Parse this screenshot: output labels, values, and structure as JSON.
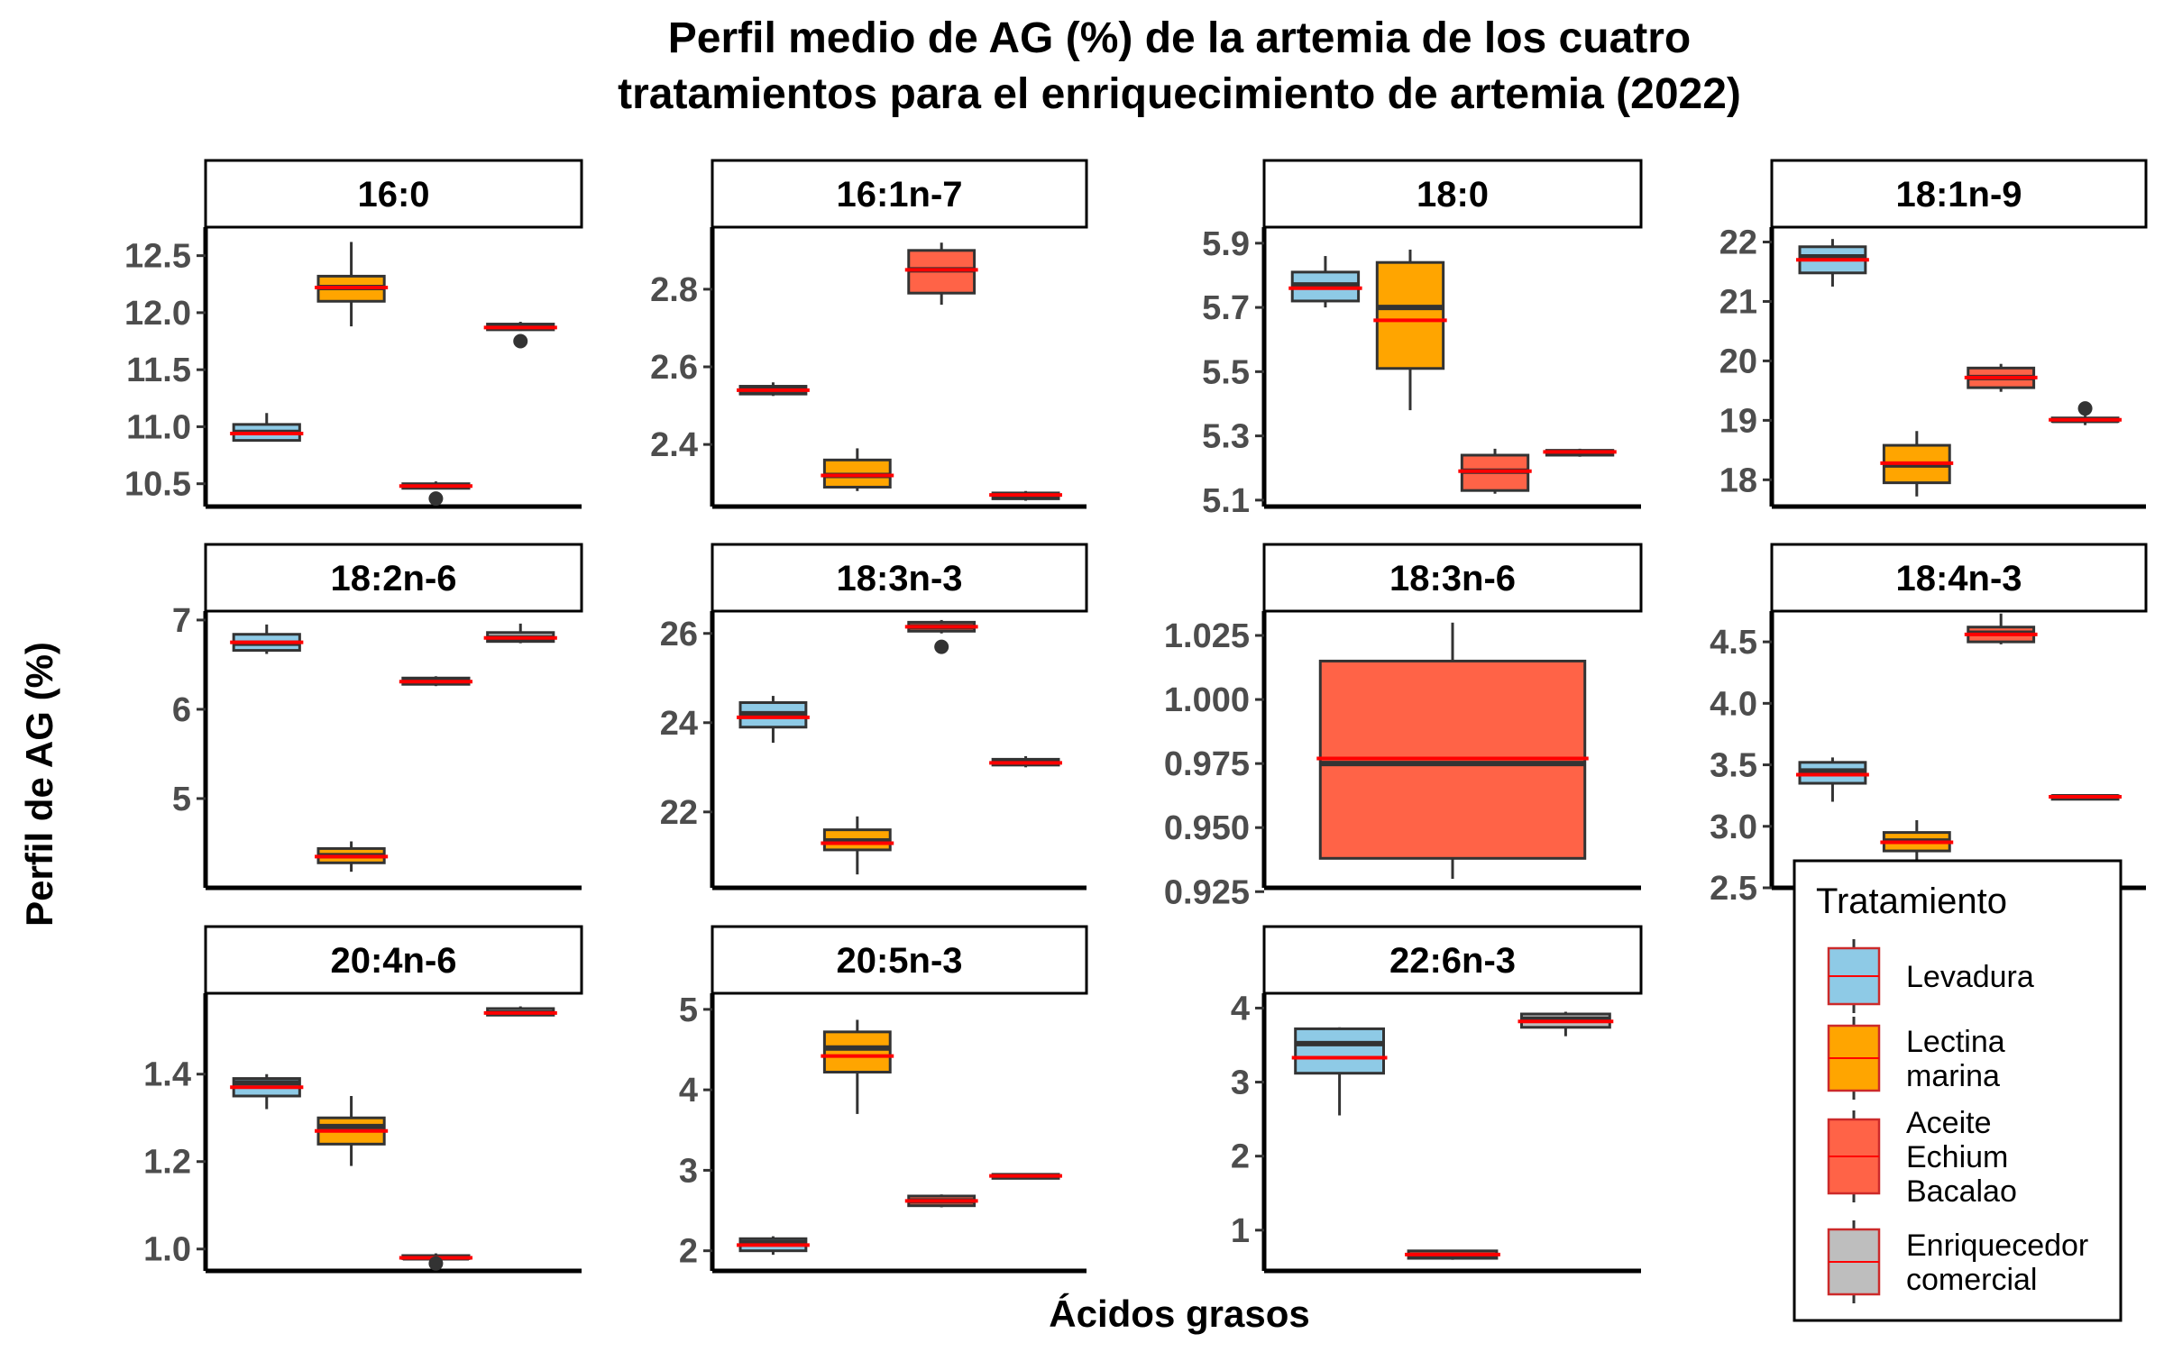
{
  "chart_data": {
    "type": "boxplot",
    "title": [
      "Perfil medio de AG (%) de la artemia de los cuatro",
      "tratamientos para el enriquecimiento de artemia (2022)"
    ],
    "xlabel": "Ácidos grasos",
    "ylabel": "Perfil de AG (%)",
    "legend": {
      "title": "Tratamiento",
      "position": "bottom-right",
      "items": [
        {
          "lines": [
            "Levadura"
          ],
          "color": "#8ecae6"
        },
        {
          "lines": [
            "Lectina",
            "marina"
          ],
          "color": "#ffa500"
        },
        {
          "lines": [
            "Aceite",
            "Echium",
            "Bacalao"
          ],
          "color": "#ff6347"
        },
        {
          "lines": [
            "Enriquecedor",
            "comercial"
          ],
          "color": "#bebebe"
        }
      ]
    },
    "mean_line_color": "#ff0000",
    "panels": [
      {
        "label": "16:0",
        "ylim": [
          10.3,
          12.75
        ],
        "ticks": [
          10.5,
          11.0,
          11.5,
          12.0,
          12.5
        ],
        "tick_labels": [
          "10.5",
          "11.0",
          "11.5",
          "12.0",
          "12.5"
        ],
        "boxes": [
          {
            "treatment": "Levadura",
            "min": 10.87,
            "q1": 10.88,
            "median": 10.95,
            "q3": 11.02,
            "max": 11.12,
            "mean": 10.94,
            "outliers": []
          },
          {
            "treatment": "Lectina marina",
            "min": 11.88,
            "q1": 12.1,
            "median": 12.22,
            "q3": 12.32,
            "max": 12.62,
            "mean": 12.22,
            "outliers": []
          },
          {
            "treatment": "Aceite Echium Bacalao",
            "min": 10.45,
            "q1": 10.46,
            "median": 10.48,
            "q3": 10.5,
            "max": 10.52,
            "mean": 10.48,
            "outliers": [
              10.37
            ]
          },
          {
            "treatment": "Enriquecedor comercial",
            "min": 11.84,
            "q1": 11.85,
            "median": 11.88,
            "q3": 11.9,
            "max": 11.92,
            "mean": 11.87,
            "outliers": [
              11.75
            ]
          }
        ]
      },
      {
        "label": "16:1n-7",
        "ylim": [
          2.24,
          2.96
        ],
        "ticks": [
          2.4,
          2.6,
          2.8
        ],
        "tick_labels": [
          "2.4",
          "2.6",
          "2.8"
        ],
        "boxes": [
          {
            "treatment": "Levadura",
            "min": 2.525,
            "q1": 2.53,
            "median": 2.54,
            "q3": 2.55,
            "max": 2.56,
            "mean": 2.54,
            "outliers": []
          },
          {
            "treatment": "Lectina marina",
            "min": 2.28,
            "q1": 2.29,
            "median": 2.32,
            "q3": 2.36,
            "max": 2.39,
            "mean": 2.32,
            "outliers": []
          },
          {
            "treatment": "Aceite Echium Bacalao",
            "min": 2.76,
            "q1": 2.79,
            "median": 2.85,
            "q3": 2.9,
            "max": 2.92,
            "mean": 2.85,
            "outliers": []
          },
          {
            "treatment": "Enriquecedor comercial",
            "min": 2.255,
            "q1": 2.26,
            "median": 2.27,
            "q3": 2.275,
            "max": 2.28,
            "mean": 2.27,
            "outliers": []
          }
        ]
      },
      {
        "label": "18:0",
        "ylim": [
          5.08,
          5.95
        ],
        "ticks": [
          5.1,
          5.3,
          5.5,
          5.7,
          5.9
        ],
        "tick_labels": [
          "5.1",
          "5.3",
          "5.5",
          "5.7",
          "5.9"
        ],
        "boxes": [
          {
            "treatment": "Levadura",
            "min": 5.7,
            "q1": 5.72,
            "median": 5.77,
            "q3": 5.81,
            "max": 5.86,
            "mean": 5.76,
            "outliers": []
          },
          {
            "treatment": "Lectina marina",
            "min": 5.38,
            "q1": 5.51,
            "median": 5.7,
            "q3": 5.84,
            "max": 5.88,
            "mean": 5.66,
            "outliers": []
          },
          {
            "treatment": "Aceite Echium Bacalao",
            "min": 5.12,
            "q1": 5.13,
            "median": 5.19,
            "q3": 5.24,
            "max": 5.26,
            "mean": 5.19,
            "outliers": []
          },
          {
            "treatment": "Enriquecedor comercial",
            "min": 5.235,
            "q1": 5.24,
            "median": 5.25,
            "q3": 5.255,
            "max": 5.26,
            "mean": 5.25,
            "outliers": []
          }
        ]
      },
      {
        "label": "18:1n-9",
        "ylim": [
          17.55,
          22.25
        ],
        "ticks": [
          18,
          19,
          20,
          21,
          22
        ],
        "tick_labels": [
          "18",
          "19",
          "20",
          "21",
          "22"
        ],
        "boxes": [
          {
            "treatment": "Levadura",
            "min": 21.25,
            "q1": 21.48,
            "median": 21.75,
            "q3": 21.92,
            "max": 22.05,
            "mean": 21.7,
            "outliers": []
          },
          {
            "treatment": "Lectina marina",
            "min": 17.72,
            "q1": 17.95,
            "median": 18.25,
            "q3": 18.58,
            "max": 18.82,
            "mean": 18.28,
            "outliers": []
          },
          {
            "treatment": "Aceite Echium Bacalao",
            "min": 19.48,
            "q1": 19.55,
            "median": 19.72,
            "q3": 19.88,
            "max": 19.95,
            "mean": 19.72,
            "outliers": []
          },
          {
            "treatment": "Enriquecedor comercial",
            "min": 18.92,
            "q1": 18.98,
            "median": 19.0,
            "q3": 19.04,
            "max": 19.08,
            "mean": 19.01,
            "outliers": [
              19.2
            ]
          }
        ]
      },
      {
        "label": "18:2n-6",
        "ylim": [
          4.0,
          7.1
        ],
        "ticks": [
          5,
          6,
          7
        ],
        "tick_labels": [
          "5",
          "6",
          "7"
        ],
        "boxes": [
          {
            "treatment": "Levadura",
            "min": 6.62,
            "q1": 6.66,
            "median": 6.74,
            "q3": 6.84,
            "max": 6.95,
            "mean": 6.75,
            "outliers": []
          },
          {
            "treatment": "Lectina marina",
            "min": 4.18,
            "q1": 4.28,
            "median": 4.36,
            "q3": 4.44,
            "max": 4.52,
            "mean": 4.35,
            "outliers": []
          },
          {
            "treatment": "Aceite Echium Bacalao",
            "min": 6.26,
            "q1": 6.28,
            "median": 6.32,
            "q3": 6.35,
            "max": 6.37,
            "mean": 6.31,
            "outliers": []
          },
          {
            "treatment": "Enriquecedor comercial",
            "min": 6.74,
            "q1": 6.76,
            "median": 6.8,
            "q3": 6.86,
            "max": 6.96,
            "mean": 6.8,
            "outliers": []
          }
        ]
      },
      {
        "label": "18:3n-3",
        "ylim": [
          20.3,
          26.5
        ],
        "ticks": [
          22,
          24,
          26
        ],
        "tick_labels": [
          "22",
          "24",
          "26"
        ],
        "boxes": [
          {
            "treatment": "Levadura",
            "min": 23.55,
            "q1": 23.9,
            "median": 24.2,
            "q3": 24.45,
            "max": 24.6,
            "mean": 24.12,
            "outliers": []
          },
          {
            "treatment": "Lectina marina",
            "min": 20.6,
            "q1": 21.15,
            "median": 21.35,
            "q3": 21.6,
            "max": 21.9,
            "mean": 21.3,
            "outliers": []
          },
          {
            "treatment": "Aceite Echium Bacalao",
            "min": 26.0,
            "q1": 26.05,
            "median": 26.15,
            "q3": 26.25,
            "max": 26.3,
            "mean": 26.15,
            "outliers": [
              25.7
            ]
          },
          {
            "treatment": "Enriquecedor comercial",
            "min": 23.0,
            "q1": 23.05,
            "median": 23.1,
            "q3": 23.18,
            "max": 23.25,
            "mean": 23.1,
            "outliers": []
          }
        ]
      },
      {
        "label": "18:3n-6",
        "ylim": [
          0.9265,
          1.0345
        ],
        "ticks": [
          0.925,
          0.95,
          0.975,
          1.0,
          1.025
        ],
        "tick_labels": [
          "0.925",
          "0.950",
          "0.975",
          "1.000",
          "1.025"
        ],
        "boxes": [
          {
            "treatment": "Aceite Echium Bacalao",
            "min": 0.93,
            "q1": 0.938,
            "median": 0.975,
            "q3": 1.015,
            "max": 1.03,
            "mean": 0.977,
            "outliers": []
          }
        ]
      },
      {
        "label": "18:4n-3",
        "ylim": [
          2.5,
          4.75
        ],
        "ticks": [
          2.5,
          3.0,
          3.5,
          4.0,
          4.5
        ],
        "tick_labels": [
          "2.5",
          "3.0",
          "3.5",
          "4.0",
          "4.5"
        ],
        "boxes": [
          {
            "treatment": "Levadura",
            "min": 3.2,
            "q1": 3.35,
            "median": 3.45,
            "q3": 3.52,
            "max": 3.56,
            "mean": 3.42,
            "outliers": []
          },
          {
            "treatment": "Lectina marina",
            "min": 2.72,
            "q1": 2.8,
            "median": 2.88,
            "q3": 2.95,
            "max": 3.05,
            "mean": 2.87,
            "outliers": []
          },
          {
            "treatment": "Aceite Echium Bacalao",
            "min": 4.48,
            "q1": 4.5,
            "median": 4.57,
            "q3": 4.62,
            "max": 4.73,
            "mean": 4.56,
            "outliers": []
          },
          {
            "treatment": "Enriquecedor comercial",
            "min": 3.22,
            "q1": 3.22,
            "median": 3.24,
            "q3": 3.25,
            "max": 3.26,
            "mean": 3.24,
            "outliers": []
          }
        ]
      },
      {
        "label": "20:4n-6",
        "ylim": [
          0.95,
          1.585
        ],
        "ticks": [
          1.0,
          1.2,
          1.4
        ],
        "tick_labels": [
          "1.0",
          "1.2",
          "1.4"
        ],
        "boxes": [
          {
            "treatment": "Levadura",
            "min": 1.32,
            "q1": 1.35,
            "median": 1.38,
            "q3": 1.39,
            "max": 1.4,
            "mean": 1.37,
            "outliers": []
          },
          {
            "treatment": "Lectina marina",
            "min": 1.19,
            "q1": 1.24,
            "median": 1.28,
            "q3": 1.3,
            "max": 1.35,
            "mean": 1.27,
            "outliers": []
          },
          {
            "treatment": "Aceite Echium Bacalao",
            "min": 0.975,
            "q1": 0.978,
            "median": 0.98,
            "q3": 0.985,
            "max": 0.99,
            "mean": 0.98,
            "outliers": [
              0.967
            ]
          },
          {
            "treatment": "Enriquecedor comercial",
            "min": 1.535,
            "q1": 1.535,
            "median": 1.54,
            "q3": 1.55,
            "max": 1.555,
            "mean": 1.54,
            "outliers": []
          }
        ]
      },
      {
        "label": "20:5n-3",
        "ylim": [
          1.75,
          5.2
        ],
        "ticks": [
          2,
          3,
          4,
          5
        ],
        "tick_labels": [
          "2",
          "3",
          "4",
          "5"
        ],
        "boxes": [
          {
            "treatment": "Levadura",
            "min": 1.95,
            "q1": 2.0,
            "median": 2.1,
            "q3": 2.15,
            "max": 2.18,
            "mean": 2.07,
            "outliers": []
          },
          {
            "treatment": "Lectina marina",
            "min": 3.7,
            "q1": 4.22,
            "median": 4.52,
            "q3": 4.72,
            "max": 4.87,
            "mean": 4.42,
            "outliers": []
          },
          {
            "treatment": "Aceite Echium Bacalao",
            "min": 2.54,
            "q1": 2.56,
            "median": 2.62,
            "q3": 2.68,
            "max": 2.7,
            "mean": 2.62,
            "outliers": []
          },
          {
            "treatment": "Enriquecedor comercial",
            "min": 2.9,
            "q1": 2.9,
            "median": 2.93,
            "q3": 2.95,
            "max": 2.96,
            "mean": 2.93,
            "outliers": []
          }
        ]
      },
      {
        "label": "22:6n-3",
        "ylim": [
          0.45,
          4.2
        ],
        "ticks": [
          1,
          2,
          3,
          4
        ],
        "tick_labels": [
          "1",
          "2",
          "3",
          "4"
        ],
        "boxes": [
          {
            "treatment": "Levadura",
            "min": 2.55,
            "q1": 3.12,
            "median": 3.52,
            "q3": 3.72,
            "max": 3.74,
            "mean": 3.33,
            "outliers": []
          },
          {
            "treatment": "Aceite Echium Bacalao",
            "min": 0.6,
            "q1": 0.62,
            "median": 0.66,
            "q3": 0.72,
            "max": 0.73,
            "mean": 0.67,
            "outliers": []
          },
          {
            "treatment": "Enriquecedor comercial",
            "min": 3.62,
            "q1": 3.74,
            "median": 3.85,
            "q3": 3.92,
            "max": 3.95,
            "mean": 3.82,
            "outliers": []
          }
        ]
      }
    ]
  }
}
